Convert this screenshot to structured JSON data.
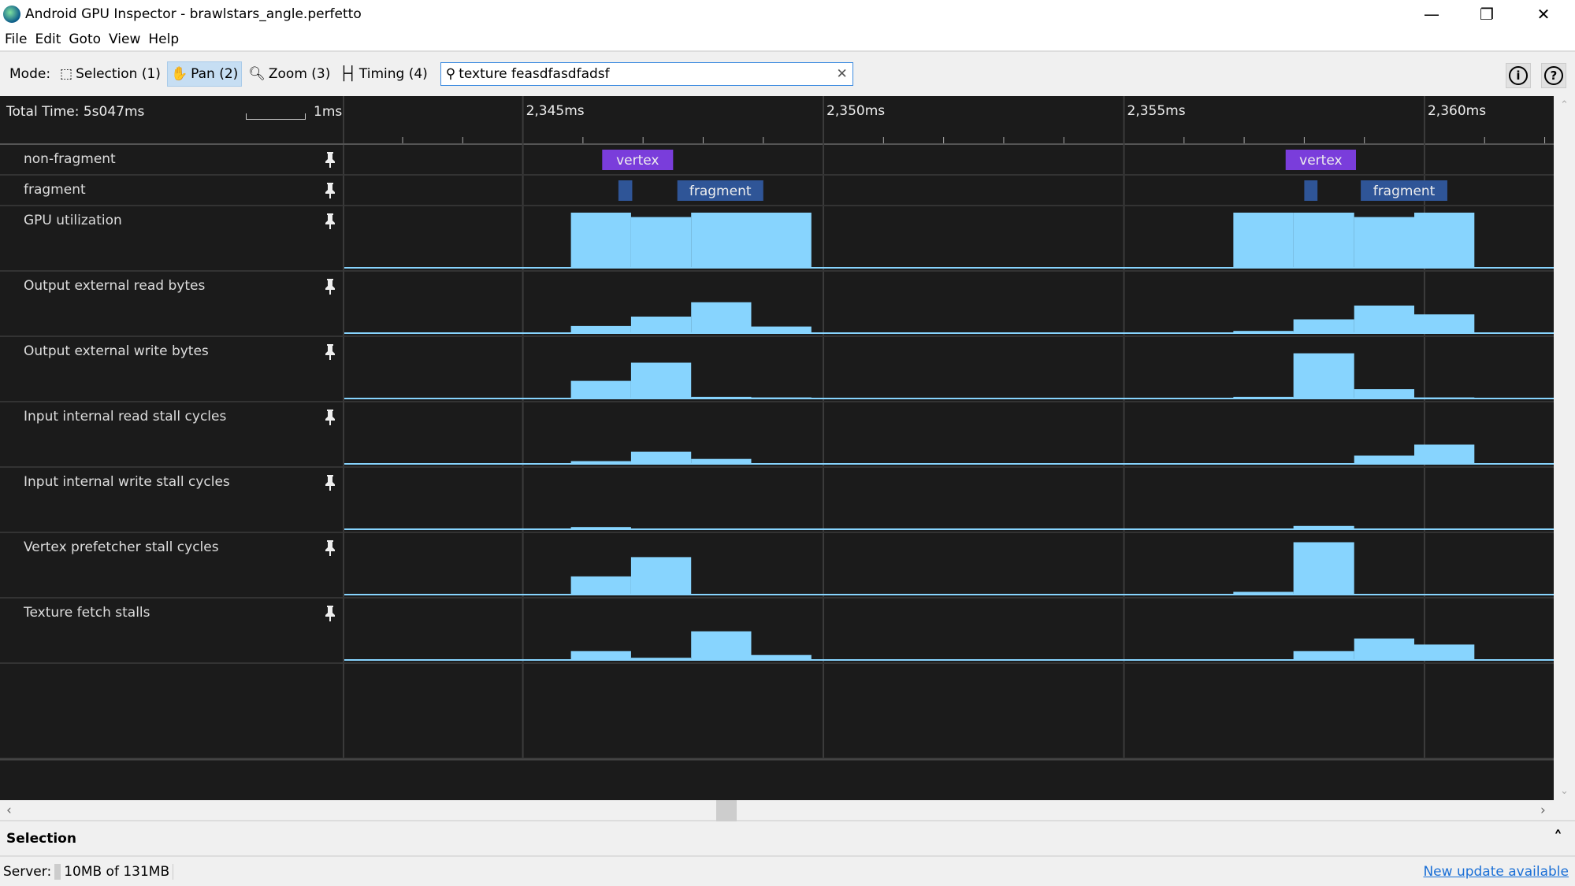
{
  "window": {
    "title": "Android GPU Inspector - brawlstars_angle.perfetto"
  },
  "menu": [
    "File",
    "Edit",
    "Goto",
    "View",
    "Help"
  ],
  "toolbar": {
    "mode_label": "Mode:",
    "modes": [
      {
        "label": "Selection (1)",
        "icon": "selection-icon",
        "active": false
      },
      {
        "label": "Pan (2)",
        "icon": "hand-icon",
        "active": true
      },
      {
        "label": "Zoom (3)",
        "icon": "zoom-icon",
        "active": false
      },
      {
        "label": "Timing (4)",
        "icon": "timing-icon",
        "active": false
      }
    ],
    "search_value": "texture feasdfasdfadsf"
  },
  "timeline": {
    "total_time": "Total Time: 5s047ms",
    "scale_label": "1ms",
    "tick_labels": [
      "2,345ms",
      "2,350ms",
      "2,355ms",
      "2,360ms"
    ],
    "major_ticks_ms": [
      2345,
      2350,
      2355,
      2360
    ],
    "view_range_ms": [
      2342.03,
      2362.15
    ],
    "colors": {
      "vertex": "#7a3ddb",
      "fragment": "#2f5597",
      "counter": "#87d4fe",
      "background": "#1b1b1b"
    },
    "slice_tracks": [
      {
        "label": "non-fragment",
        "slices": [
          {
            "name": "vertex",
            "start": 2346.32,
            "end": 2347.5
          },
          {
            "name": "vertex",
            "start": 2357.69,
            "end": 2358.86
          }
        ]
      },
      {
        "label": "fragment",
        "slices": [
          {
            "name": "",
            "start": 2346.59,
            "end": 2346.82
          },
          {
            "name": "fragment",
            "start": 2347.57,
            "end": 2349.0
          },
          {
            "name": "",
            "start": 2358.0,
            "end": 2358.22
          },
          {
            "name": "fragment",
            "start": 2358.94,
            "end": 2360.38
          }
        ]
      }
    ],
    "counter_tracks": [
      {
        "label": "GPU utilization",
        "steps": [
          [
            2345.8,
            2346.8,
            2347.8,
            2348.8,
            2349.8
          ],
          [
            2356.82,
            2357.82,
            2358.83,
            2359.83,
            2360.83
          ]
        ],
        "values": [
          [
            1,
            0.92,
            1,
            1
          ],
          [
            1,
            1,
            0.92,
            1
          ]
        ]
      },
      {
        "label": "Output external read bytes",
        "steps": [
          [
            2345.8,
            2346.8,
            2347.8,
            2348.8,
            2349.8
          ],
          [
            2356.82,
            2357.82,
            2358.83,
            2359.83,
            2360.83
          ]
        ],
        "values": [
          [
            0.13,
            0.3,
            0.56,
            0.12
          ],
          [
            0.04,
            0.25,
            0.5,
            0.34
          ]
        ]
      },
      {
        "label": "Output external write bytes",
        "steps": [
          [
            2345.8,
            2346.8,
            2347.8,
            2348.8,
            2349.8
          ],
          [
            2356.82,
            2357.82,
            2358.83,
            2359.83,
            2360.83
          ]
        ],
        "values": [
          [
            0.32,
            0.65,
            0.03,
            0.02
          ],
          [
            0.03,
            0.82,
            0.17,
            0.02
          ]
        ]
      },
      {
        "label": "Input internal read stall cycles",
        "steps": [
          [
            2345.8,
            2346.8,
            2347.8,
            2348.8,
            2349.8
          ],
          [
            2356.82,
            2357.82,
            2358.83,
            2359.83,
            2360.83
          ]
        ],
        "values": [
          [
            0.05,
            0.22,
            0.09,
            0
          ],
          [
            0,
            0,
            0.15,
            0.35
          ]
        ]
      },
      {
        "label": "Input internal write stall cycles",
        "steps": [
          [
            2345.8,
            2346.8,
            2347.8,
            2348.8,
            2349.8
          ],
          [
            2356.82,
            2357.82,
            2358.83,
            2359.83,
            2360.83
          ]
        ],
        "values": [
          [
            0.04,
            0,
            0,
            0
          ],
          [
            0,
            0.06,
            0,
            0
          ]
        ]
      },
      {
        "label": "Vertex prefetcher stall cycles",
        "steps": [
          [
            2345.8,
            2346.8,
            2347.8,
            2348.8,
            2349.8
          ],
          [
            2356.82,
            2357.82,
            2358.83,
            2359.83,
            2360.83
          ]
        ],
        "values": [
          [
            0.33,
            0.68,
            0,
            0
          ],
          [
            0.05,
            0.95,
            0,
            0
          ]
        ]
      },
      {
        "label": "Texture fetch stalls",
        "steps": [
          [
            2345.8,
            2346.8,
            2347.8,
            2348.8,
            2349.8
          ],
          [
            2356.82,
            2357.82,
            2358.83,
            2359.83,
            2360.83
          ]
        ],
        "values": [
          [
            0.16,
            0.04,
            0.52,
            0.09
          ],
          [
            0,
            0.16,
            0.39,
            0.28
          ]
        ]
      }
    ]
  },
  "selection_panel": {
    "title": "Selection"
  },
  "status": {
    "server_label": "Server:",
    "memory": "10MB of 131MB",
    "update_link": "New update available"
  }
}
